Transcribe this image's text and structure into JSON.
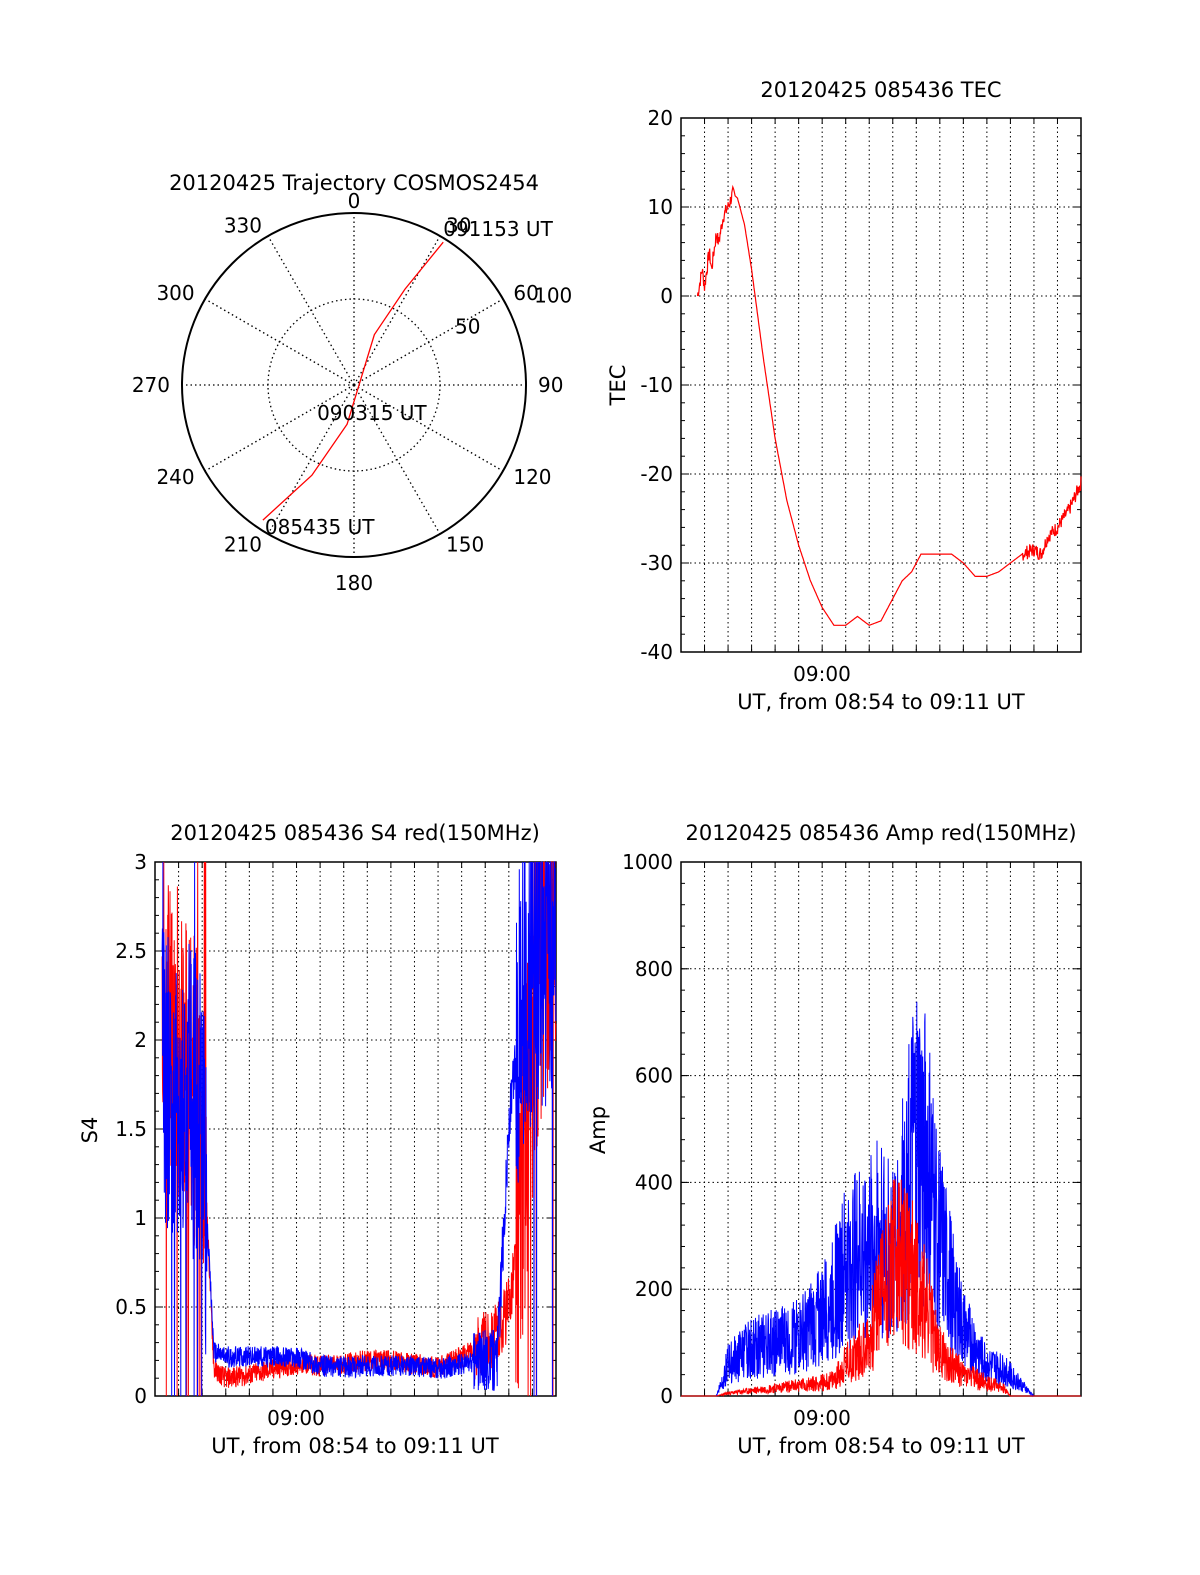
{
  "colors": {
    "red": "#ff0000",
    "blue": "#0000ff",
    "axis": "#000000",
    "grid": "#000000"
  },
  "chart_data": [
    {
      "id": "polar",
      "type": "scatter",
      "title": "20120425 Trajectory COSMOS2454",
      "projection": "polar",
      "angle_labels": [
        "0",
        "30",
        "60",
        "90",
        "120",
        "150",
        "180",
        "210",
        "240",
        "270",
        "300",
        "330"
      ],
      "radial_labels": [
        "50",
        "100"
      ],
      "series": [
        {
          "color": "#ff0000",
          "points": [
            [
              214,
              90
            ],
            [
              205,
              55
            ],
            [
              190,
              22
            ],
            [
              22,
              30
            ],
            [
              28,
              60
            ],
            [
              32,
              93
            ]
          ]
        }
      ],
      "annotations": [
        {
          "text": "085435 UT",
          "azimuth": 214,
          "elevation": 90
        },
        {
          "text": "090315 UT",
          "azimuth": 190,
          "elevation": 22
        },
        {
          "text": "091153 UT",
          "azimuth": 32,
          "elevation": 93
        }
      ],
      "grid": true
    },
    {
      "id": "tec",
      "type": "line",
      "title": "20120425 085436 TEC",
      "ylabel": "TEC",
      "xlabel": "UT, from 08:54 to 09:11 UT",
      "xtick_label": "09:00",
      "ylim": [
        -40,
        20
      ],
      "yticks": [
        "-40",
        "-30",
        "-20",
        "-10",
        "0",
        "10",
        "20"
      ],
      "xlim_minutes": [
        0,
        17
      ],
      "grid": true,
      "series": [
        {
          "color": "#ff0000",
          "x": [
            0.7,
            0.9,
            1.0,
            1.2,
            1.3,
            1.5,
            1.6,
            1.8,
            2.0,
            2.2,
            2.4,
            2.7,
            3.0,
            3.5,
            4.0,
            4.5,
            5.0,
            5.5,
            6.0,
            6.5,
            7.0,
            7.5,
            8.0,
            8.5,
            9.0,
            9.4,
            9.8,
            10.2,
            10.6,
            11.0,
            11.5,
            12.0,
            12.5,
            13.0,
            13.5,
            14.0,
            14.5,
            15.0,
            15.3,
            15.6,
            16.0,
            16.5,
            17.0
          ],
          "y": [
            0,
            3,
            1,
            5,
            3,
            7,
            6,
            9,
            10,
            11.5,
            11,
            8,
            3,
            -7,
            -16,
            -23,
            -28,
            -32,
            -35,
            -37,
            -37,
            -36,
            -37,
            -36.5,
            -34,
            -32,
            -31,
            -29,
            -29,
            -29,
            -29,
            -30,
            -31.5,
            -31.5,
            -31,
            -30,
            -29,
            -28.5,
            -29,
            -27,
            -26,
            -24,
            -21
          ]
        }
      ]
    },
    {
      "id": "s4",
      "type": "line",
      "title": "20120425 085436 S4 red(150MHz)",
      "ylabel": "S4",
      "xlabel": "UT, from 08:54 to 09:11 UT",
      "xtick_label": "09:00",
      "ylim": [
        0,
        3
      ],
      "yticks": [
        "0",
        "0.5",
        "1",
        "1.5",
        "2",
        "2.5",
        "3"
      ],
      "xlim_minutes": [
        0,
        17
      ],
      "grid": true,
      "series": [
        {
          "color": "#ff0000",
          "x": [
            0.5,
            1.0,
            1.5,
            2.0,
            2.5,
            3.0,
            4.0,
            5.0,
            6.0,
            7.0,
            8.0,
            9.0,
            10.0,
            11.0,
            12.0,
            13.0,
            13.7,
            14.5,
            15.0,
            15.5,
            16.0,
            16.5,
            17.0
          ],
          "y": [
            2.2,
            2.0,
            1.8,
            1.6,
            0.15,
            0.1,
            0.12,
            0.15,
            0.18,
            0.17,
            0.18,
            0.2,
            0.2,
            0.18,
            0.16,
            0.22,
            0.28,
            0.35,
            0.5,
            1.0,
            2.0,
            2.5,
            2.7
          ]
        },
        {
          "color": "#0000ff",
          "x": [
            0.5,
            1.0,
            1.5,
            2.0,
            2.5,
            3.0,
            4.0,
            5.0,
            6.0,
            7.0,
            8.0,
            9.0,
            10.0,
            11.0,
            12.0,
            13.0,
            13.7,
            14.5,
            15.0,
            15.5,
            16.0,
            16.5,
            17.0
          ],
          "y": [
            1.8,
            1.6,
            1.7,
            1.5,
            0.25,
            0.22,
            0.22,
            0.22,
            0.22,
            0.17,
            0.16,
            0.17,
            0.17,
            0.17,
            0.15,
            0.18,
            0.2,
            0.2,
            1.5,
            2.2,
            2.4,
            2.5,
            2.6
          ]
        }
      ]
    },
    {
      "id": "amp",
      "type": "line",
      "title": "20120425 085436 Amp red(150MHz)",
      "ylabel": "Amp",
      "xlabel": "UT, from 08:54 to 09:11 UT",
      "xtick_label": "09:00",
      "ylim": [
        0,
        1000
      ],
      "yticks": [
        "0",
        "200",
        "400",
        "600",
        "800",
        "1000"
      ],
      "xlim_minutes": [
        0,
        17
      ],
      "grid": true,
      "series": [
        {
          "color": "#ff0000",
          "x": [
            0,
            1.5,
            2.0,
            3.0,
            4.0,
            5.0,
            6.0,
            6.5,
            7.0,
            8.0,
            8.5,
            9.0,
            9.5,
            10.0,
            10.5,
            11.0,
            12.0,
            13.0,
            13.7,
            14.0,
            15.0,
            17.0
          ],
          "y": [
            0,
            0,
            5,
            10,
            15,
            20,
            25,
            30,
            60,
            100,
            200,
            260,
            240,
            220,
            150,
            80,
            40,
            25,
            15,
            0,
            0,
            0
          ]
        },
        {
          "color": "#0000ff",
          "x": [
            0,
            1.5,
            2.0,
            3.0,
            4.0,
            5.0,
            5.5,
            6.0,
            6.5,
            7.0,
            8.0,
            8.5,
            9.0,
            9.5,
            10.0,
            10.5,
            11.0,
            12.0,
            13.0,
            14.0,
            15.0,
            17.0
          ],
          "y": [
            0,
            0,
            60,
            90,
            100,
            110,
            130,
            150,
            190,
            240,
            280,
            300,
            260,
            360,
            480,
            420,
            280,
            120,
            60,
            40,
            0,
            0
          ]
        }
      ]
    }
  ]
}
